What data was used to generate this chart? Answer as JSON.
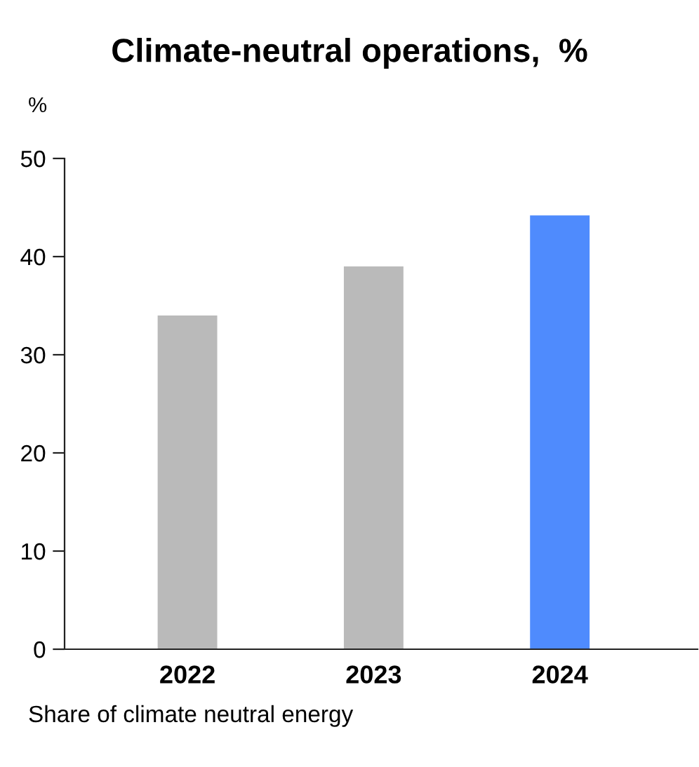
{
  "chart_data": {
    "type": "bar",
    "title": "Climate-neutral operations,  %",
    "ylabel": "%",
    "categories": [
      "2022",
      "2023",
      "2024"
    ],
    "values": [
      34,
      39,
      44.2
    ],
    "colors": [
      "#bababa",
      "#bababa",
      "#4f8bfd"
    ],
    "ylim": [
      0,
      50
    ],
    "yticks": [
      0,
      10,
      20,
      30,
      40,
      50
    ],
    "grid": false,
    "legend": false,
    "annotations": [
      "Share of climate neutral energy"
    ]
  }
}
